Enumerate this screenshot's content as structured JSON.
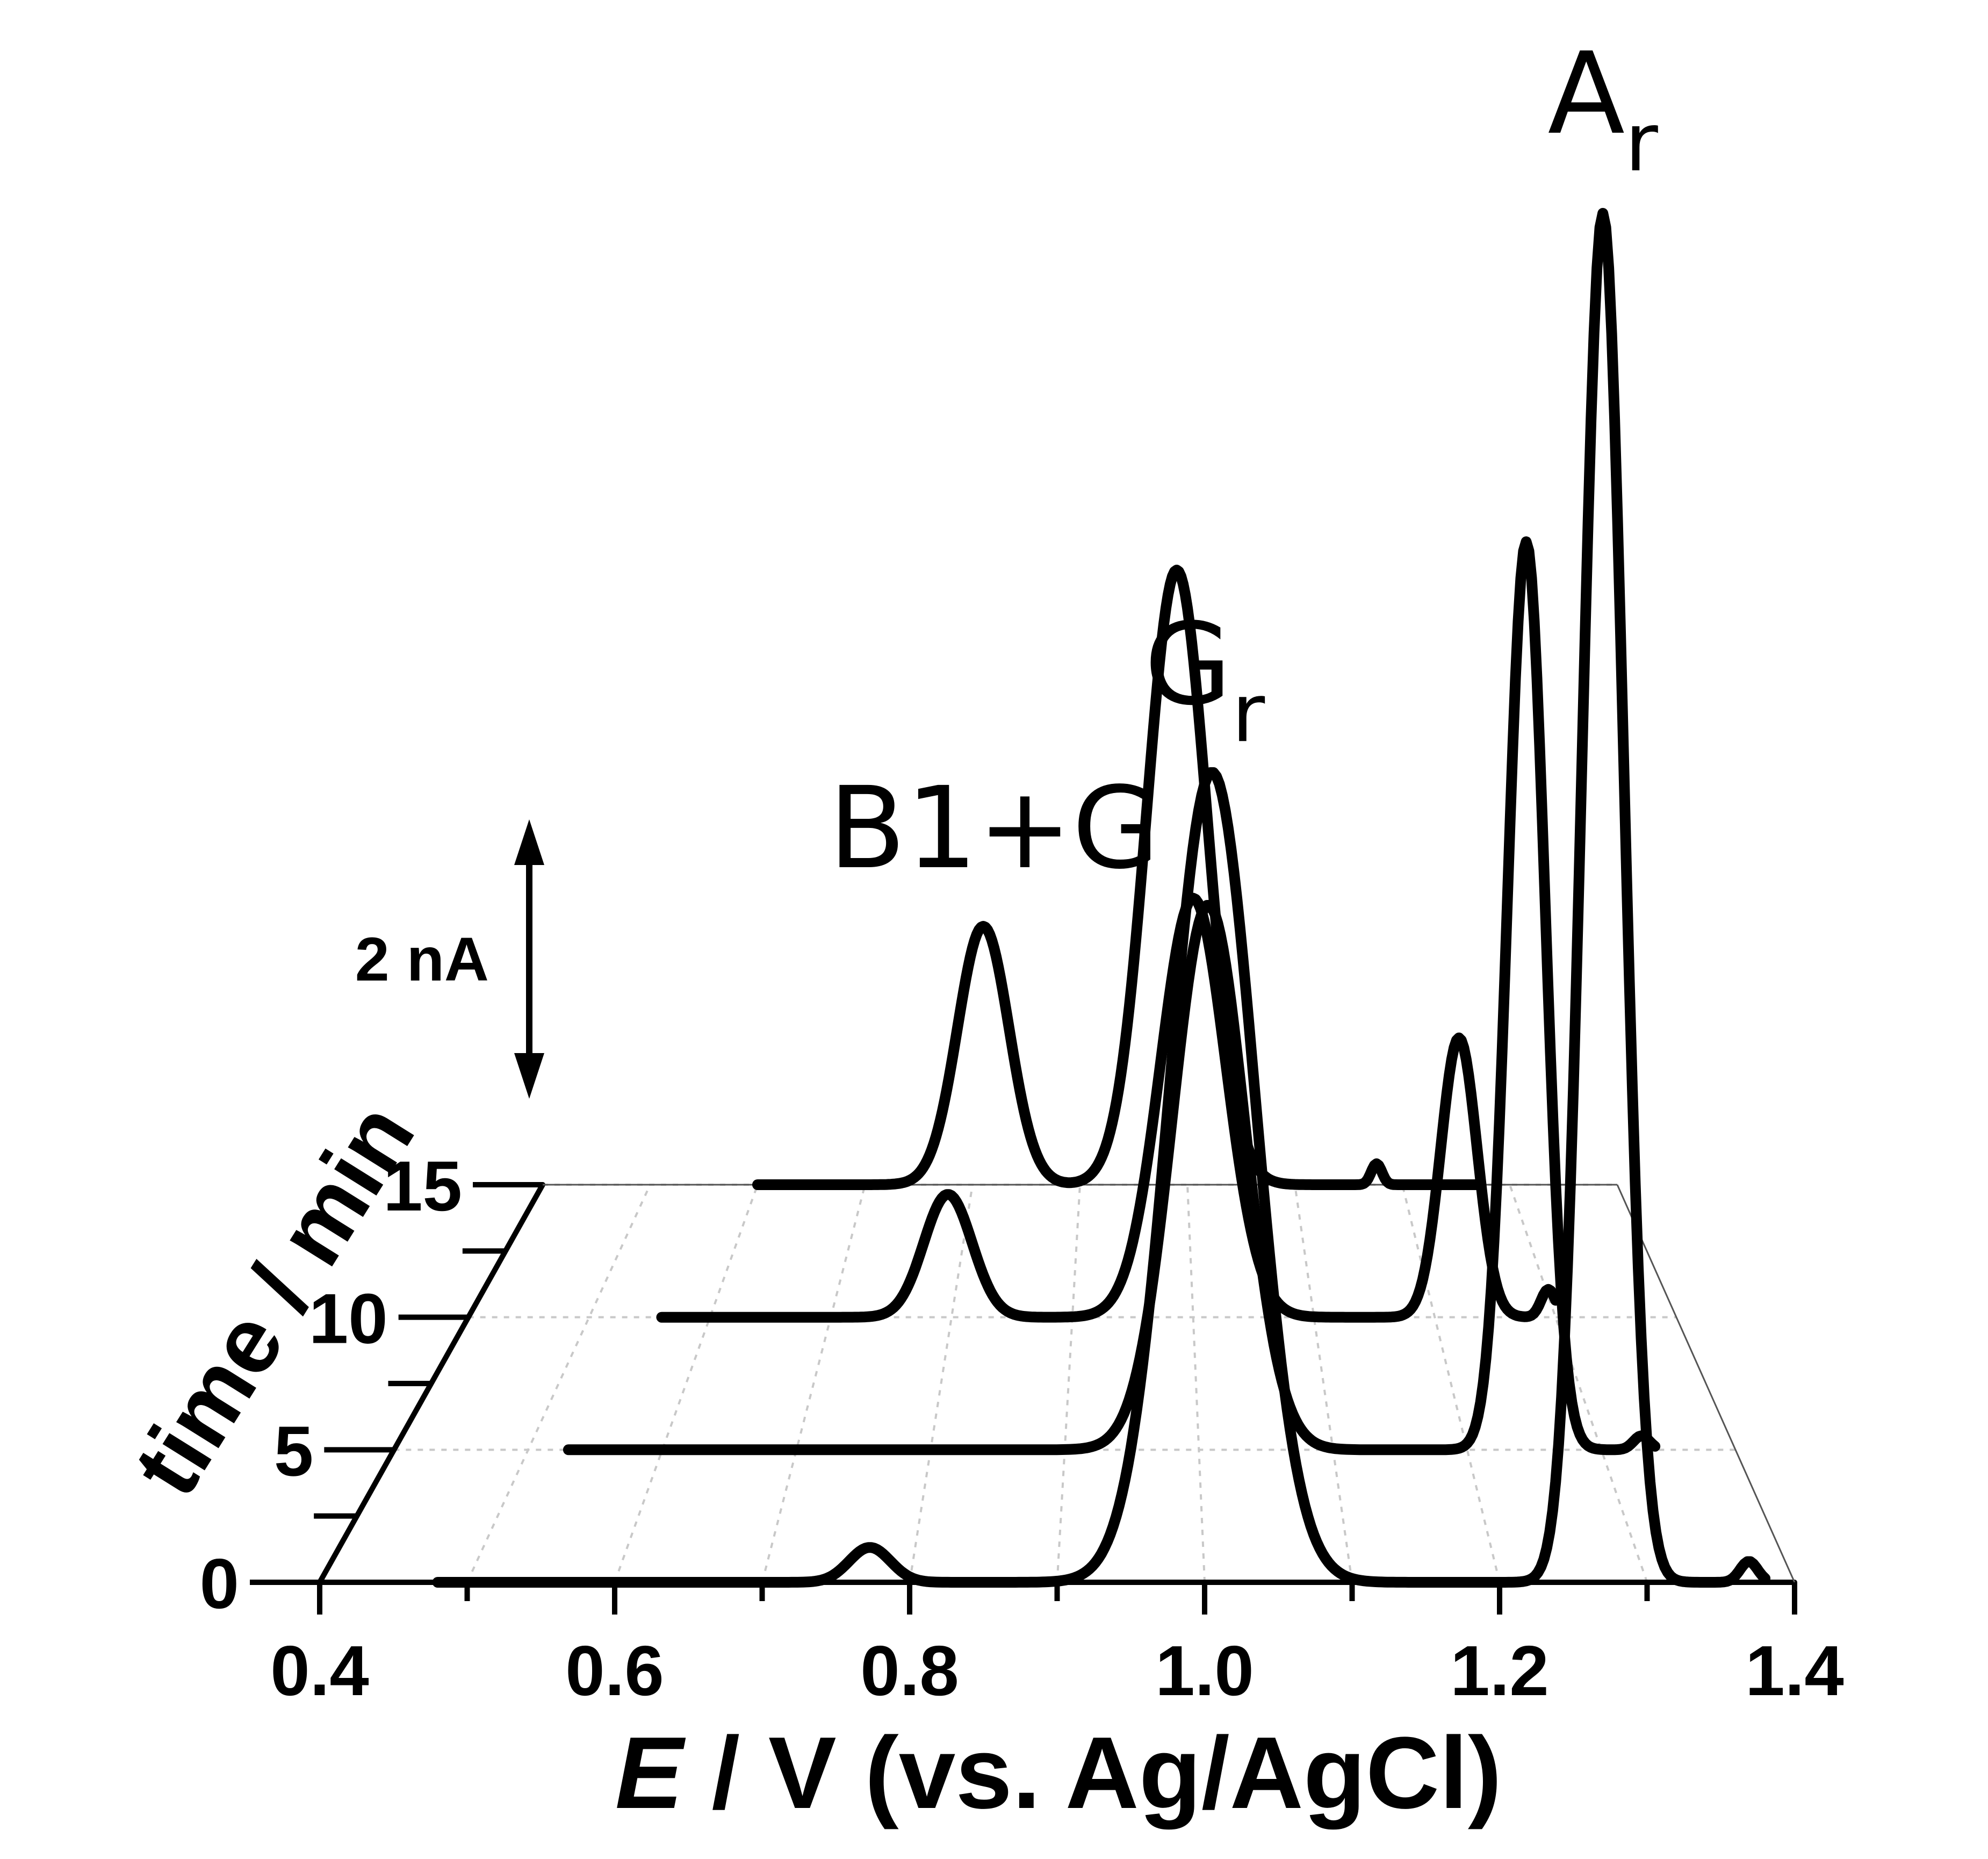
{
  "chart_data": {
    "type": "line",
    "subtype": "3d-waterfall",
    "x_axis": {
      "title_symbol": "E",
      "title_rest": " / V (vs. Ag/AgCl)",
      "ticks": [
        0.4,
        0.6,
        0.8,
        1.0,
        1.2,
        1.4
      ],
      "tick_labels": [
        "0.4",
        "0.6",
        "0.8",
        "1.0",
        "1.2",
        "1.4"
      ],
      "range": [
        0.4,
        1.4
      ]
    },
    "depth_axis": {
      "title": "time / min",
      "ticks": [
        0,
        5,
        10,
        15
      ],
      "tick_labels": [
        "0",
        "5",
        "10",
        "15"
      ],
      "range": [
        0,
        15
      ]
    },
    "scale_bar": {
      "label": "2 nA",
      "value_nA": 2
    },
    "peak_labels": [
      {
        "text": "B1+G",
        "x": 0.82,
        "time": 15
      },
      {
        "main": "G",
        "sub": "r",
        "x": 1.0,
        "time": 0
      },
      {
        "main": "A",
        "sub": "r",
        "x": 1.27,
        "time": 0
      }
    ],
    "series": [
      {
        "time": 0,
        "x_range": [
          0.48,
          1.38
        ],
        "peaks": [
          {
            "x": 0.773,
            "height_nA": 0.25,
            "width": 0.014
          },
          {
            "x": 1.005,
            "height_nA": 5.8,
            "width": 0.029
          },
          {
            "x": 1.27,
            "height_nA": 9.8,
            "width": 0.014
          },
          {
            "x": 1.369,
            "height_nA": 0.15,
            "width": 0.006
          }
        ]
      },
      {
        "time": 5,
        "x_range": [
          0.53,
          1.34
        ],
        "peaks": [
          {
            "x": 1.007,
            "height_nA": 3.9,
            "width": 0.027
          },
          {
            "x": 1.244,
            "height_nA": 6.5,
            "width": 0.014
          },
          {
            "x": 1.33,
            "height_nA": 0.1,
            "width": 0.006
          }
        ]
      },
      {
        "time": 10,
        "x_range": [
          0.56,
          1.3
        ],
        "peaks": [
          {
            "x": 0.797,
            "height_nA": 0.88,
            "width": 0.02
          },
          {
            "x": 1.0,
            "height_nA": 3.0,
            "width": 0.027
          },
          {
            "x": 1.22,
            "height_nA": 2.0,
            "width": 0.015
          },
          {
            "x": 1.294,
            "height_nA": 0.2,
            "width": 0.006
          }
        ]
      },
      {
        "time": 15,
        "x_range": [
          0.6,
          1.27
        ],
        "peaks": [
          {
            "x": 0.81,
            "height_nA": 1.85,
            "width": 0.024
          },
          {
            "x": 0.99,
            "height_nA": 4.4,
            "width": 0.028
          },
          {
            "x": 1.176,
            "height_nA": 0.15,
            "width": 0.005
          }
        ]
      }
    ]
  }
}
